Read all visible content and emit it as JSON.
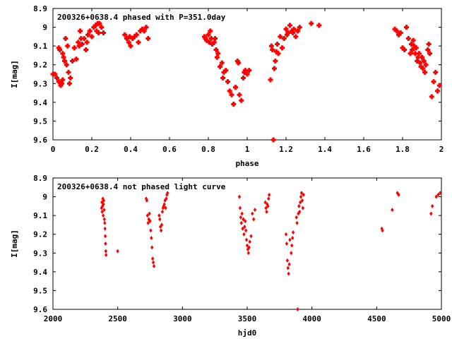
{
  "chart_data": [
    {
      "type": "scatter",
      "title": "200326+0638.4 phased with P=351.0day",
      "xlabel": "phase",
      "ylabel": "I[mag]",
      "xlim": [
        0,
        2
      ],
      "ylim": [
        9.6,
        8.9
      ],
      "y_inverted": true,
      "grid": false,
      "marker": "star",
      "color": "#ff0000",
      "x_ticks": [
        "0",
        "0.2",
        "0.4",
        "0.6",
        "0.8",
        "1",
        "1.2",
        "1.4",
        "1.6",
        "1.8",
        "2"
      ],
      "y_ticks": [
        "8.9",
        "9",
        "9.1",
        "9.2",
        "9.3",
        "9.4",
        "9.5",
        "9.6"
      ],
      "points": [
        [
          0.0,
          9.25
        ],
        [
          0.01,
          9.25
        ],
        [
          0.02,
          9.27
        ],
        [
          0.03,
          9.29
        ],
        [
          0.03,
          9.11
        ],
        [
          0.035,
          9.12
        ],
        [
          0.04,
          9.31
        ],
        [
          0.045,
          9.3
        ],
        [
          0.05,
          9.28
        ],
        [
          0.05,
          9.14
        ],
        [
          0.055,
          9.16
        ],
        [
          0.06,
          9.18
        ],
        [
          0.065,
          9.06
        ],
        [
          0.07,
          9.2
        ],
        [
          0.075,
          9.1
        ],
        [
          0.08,
          9.24
        ],
        [
          0.085,
          9.3
        ],
        [
          0.09,
          9.27
        ],
        [
          0.1,
          9.18
        ],
        [
          0.11,
          9.11
        ],
        [
          0.12,
          9.17
        ],
        [
          0.13,
          9.08
        ],
        [
          0.135,
          9.1
        ],
        [
          0.14,
          9.02
        ],
        [
          0.145,
          9.06
        ],
        [
          0.15,
          9.09
        ],
        [
          0.16,
          9.06
        ],
        [
          0.17,
          9.12
        ],
        [
          0.175,
          9.08
        ],
        [
          0.18,
          9.04
        ],
        [
          0.19,
          9.02
        ],
        [
          0.2,
          9.05
        ],
        [
          0.21,
          9.0
        ],
        [
          0.22,
          8.99
        ],
        [
          0.225,
          9.02
        ],
        [
          0.23,
          8.98
        ],
        [
          0.235,
          9.03
        ],
        [
          0.24,
          8.98
        ],
        [
          0.25,
          9.0
        ],
        [
          0.26,
          9.03
        ],
        [
          0.37,
          9.04
        ],
        [
          0.38,
          9.06
        ],
        [
          0.39,
          9.08
        ],
        [
          0.395,
          9.05
        ],
        [
          0.4,
          9.1
        ],
        [
          0.41,
          9.06
        ],
        [
          0.42,
          9.05
        ],
        [
          0.43,
          9.04
        ],
        [
          0.44,
          9.08
        ],
        [
          0.45,
          9.02
        ],
        [
          0.46,
          9.01
        ],
        [
          0.47,
          9.02
        ],
        [
          0.48,
          9.0
        ],
        [
          0.49,
          9.06
        ],
        [
          0.78,
          9.05
        ],
        [
          0.785,
          9.06
        ],
        [
          0.79,
          9.07
        ],
        [
          0.8,
          9.04
        ],
        [
          0.805,
          9.08
        ],
        [
          0.81,
          9.02
        ],
        [
          0.815,
          9.06
        ],
        [
          0.82,
          9.09
        ],
        [
          0.83,
          9.08
        ],
        [
          0.835,
          9.06
        ],
        [
          0.84,
          9.12
        ],
        [
          0.845,
          9.16
        ],
        [
          0.85,
          9.14
        ],
        [
          0.86,
          9.21
        ],
        [
          0.87,
          9.19
        ],
        [
          0.875,
          9.27
        ],
        [
          0.88,
          9.24
        ],
        [
          0.89,
          9.23
        ],
        [
          0.9,
          9.29
        ],
        [
          0.91,
          9.34
        ],
        [
          0.92,
          9.36
        ],
        [
          0.93,
          9.41
        ],
        [
          0.94,
          9.32
        ],
        [
          0.95,
          9.18
        ],
        [
          0.955,
          9.19
        ],
        [
          0.96,
          9.36
        ],
        [
          0.97,
          9.39
        ],
        [
          0.98,
          9.27
        ],
        [
          0.985,
          9.24
        ],
        [
          0.99,
          9.23
        ],
        [
          1.0,
          9.25
        ],
        [
          1.01,
          9.23
        ],
        [
          1.12,
          9.28
        ],
        [
          1.125,
          9.1
        ],
        [
          1.13,
          9.12
        ],
        [
          1.135,
          9.6
        ],
        [
          1.14,
          9.22
        ],
        [
          1.145,
          9.18
        ],
        [
          1.15,
          9.13
        ],
        [
          1.155,
          9.09
        ],
        [
          1.16,
          9.14
        ],
        [
          1.17,
          9.05
        ],
        [
          1.18,
          9.11
        ],
        [
          1.19,
          9.06
        ],
        [
          1.2,
          9.01
        ],
        [
          1.205,
          9.04
        ],
        [
          1.21,
          9.03
        ],
        [
          1.22,
          8.99
        ],
        [
          1.23,
          9.02
        ],
        [
          1.235,
          9.03
        ],
        [
          1.24,
          9.01
        ],
        [
          1.25,
          9.05
        ],
        [
          1.26,
          9.02
        ],
        [
          1.27,
          9.0
        ],
        [
          1.33,
          8.98
        ],
        [
          1.37,
          8.99
        ],
        [
          1.76,
          9.01
        ],
        [
          1.77,
          9.02
        ],
        [
          1.78,
          9.04
        ],
        [
          1.79,
          9.03
        ],
        [
          1.8,
          9.11
        ],
        [
          1.81,
          9.12
        ],
        [
          1.82,
          9.0
        ],
        [
          1.83,
          9.06
        ],
        [
          1.84,
          9.14
        ],
        [
          1.845,
          9.09
        ],
        [
          1.85,
          9.12
        ],
        [
          1.855,
          9.07
        ],
        [
          1.86,
          9.1
        ],
        [
          1.865,
          9.14
        ],
        [
          1.87,
          9.11
        ],
        [
          1.875,
          9.18
        ],
        [
          1.88,
          9.16
        ],
        [
          1.885,
          9.14
        ],
        [
          1.89,
          9.19
        ],
        [
          1.895,
          9.21
        ],
        [
          1.9,
          9.16
        ],
        [
          1.905,
          9.22
        ],
        [
          1.91,
          9.18
        ],
        [
          1.915,
          9.24
        ],
        [
          1.92,
          9.2
        ],
        [
          1.93,
          9.12
        ],
        [
          1.935,
          9.09
        ],
        [
          1.94,
          9.14
        ],
        [
          1.95,
          9.37
        ],
        [
          1.96,
          9.29
        ],
        [
          1.97,
          9.24
        ],
        [
          1.98,
          9.34
        ],
        [
          1.99,
          9.31
        ]
      ]
    },
    {
      "type": "scatter",
      "title": "200326+0638.4 not phased light curve",
      "xlabel": "hjd0",
      "ylabel": "I[mag]",
      "xlim": [
        2000,
        5000
      ],
      "ylim": [
        9.6,
        8.9
      ],
      "y_inverted": true,
      "grid": false,
      "marker": "diamond",
      "color": "#ff0000",
      "x_ticks": [
        "2000",
        "2500",
        "3000",
        "3500",
        "4000",
        "4500",
        "5000"
      ],
      "y_ticks": [
        "8.9",
        "9",
        "9.1",
        "9.2",
        "9.3",
        "9.4",
        "9.5",
        "9.6"
      ],
      "points": [
        [
          2375,
          9.06
        ],
        [
          2378,
          9.03
        ],
        [
          2380,
          9.08
        ],
        [
          2383,
          9.05
        ],
        [
          2385,
          9.01
        ],
        [
          2388,
          9.1
        ],
        [
          2390,
          9.04
        ],
        [
          2392,
          9.02
        ],
        [
          2395,
          9.07
        ],
        [
          2397,
          9.12
        ],
        [
          2400,
          9.14
        ],
        [
          2402,
          9.17
        ],
        [
          2404,
          9.21
        ],
        [
          2406,
          9.25
        ],
        [
          2408,
          9.29
        ],
        [
          2410,
          9.31
        ],
        [
          2500,
          9.29
        ],
        [
          2720,
          9.01
        ],
        [
          2725,
          9.02
        ],
        [
          2730,
          9.1
        ],
        [
          2735,
          9.14
        ],
        [
          2740,
          9.12
        ],
        [
          2745,
          9.09
        ],
        [
          2750,
          9.13
        ],
        [
          2755,
          9.18
        ],
        [
          2760,
          9.22
        ],
        [
          2765,
          9.27
        ],
        [
          2770,
          9.33
        ],
        [
          2775,
          9.35
        ],
        [
          2780,
          9.37
        ],
        [
          2820,
          9.1
        ],
        [
          2825,
          9.12
        ],
        [
          2830,
          9.16
        ],
        [
          2835,
          9.18
        ],
        [
          2840,
          9.15
        ],
        [
          2845,
          9.08
        ],
        [
          2850,
          9.06
        ],
        [
          2855,
          9.05
        ],
        [
          2860,
          9.04
        ],
        [
          2865,
          9.02
        ],
        [
          2870,
          9.06
        ],
        [
          2875,
          9.01
        ],
        [
          2880,
          8.99
        ],
        [
          2885,
          8.98
        ],
        [
          3440,
          9.0
        ],
        [
          3445,
          9.06
        ],
        [
          3450,
          9.11
        ],
        [
          3455,
          9.14
        ],
        [
          3460,
          9.09
        ],
        [
          3465,
          9.17
        ],
        [
          3470,
          9.12
        ],
        [
          3475,
          9.2
        ],
        [
          3480,
          9.16
        ],
        [
          3485,
          9.13
        ],
        [
          3490,
          9.18
        ],
        [
          3495,
          9.23
        ],
        [
          3500,
          9.26
        ],
        [
          3505,
          9.28
        ],
        [
          3510,
          9.3
        ],
        [
          3515,
          9.27
        ],
        [
          3520,
          9.24
        ],
        [
          3530,
          9.21
        ],
        [
          3540,
          9.09
        ],
        [
          3550,
          9.12
        ],
        [
          3560,
          9.07
        ],
        [
          3640,
          9.03
        ],
        [
          3645,
          9.06
        ],
        [
          3650,
          9.08
        ],
        [
          3655,
          9.04
        ],
        [
          3660,
          9.05
        ],
        [
          3665,
          9.01
        ],
        [
          3670,
          8.99
        ],
        [
          3800,
          9.2
        ],
        [
          3805,
          9.25
        ],
        [
          3810,
          9.34
        ],
        [
          3815,
          9.38
        ],
        [
          3820,
          9.41
        ],
        [
          3825,
          9.36
        ],
        [
          3830,
          9.23
        ],
        [
          3840,
          9.3
        ],
        [
          3845,
          9.26
        ],
        [
          3850,
          9.22
        ],
        [
          3855,
          9.19
        ],
        [
          3880,
          9.11
        ],
        [
          3885,
          9.14
        ],
        [
          3890,
          9.6
        ],
        [
          3895,
          9.09
        ],
        [
          3900,
          9.05
        ],
        [
          3905,
          9.08
        ],
        [
          3910,
          9.03
        ],
        [
          3915,
          9.0
        ],
        [
          3920,
          8.98
        ],
        [
          3925,
          9.02
        ],
        [
          3930,
          9.06
        ],
        [
          3935,
          8.99
        ],
        [
          4540,
          9.17
        ],
        [
          4545,
          9.18
        ],
        [
          4620,
          9.07
        ],
        [
          4660,
          8.98
        ],
        [
          4670,
          8.99
        ],
        [
          4920,
          9.09
        ],
        [
          4930,
          9.05
        ],
        [
          4960,
          9.0
        ],
        [
          4975,
          8.99
        ],
        [
          4990,
          8.98
        ]
      ]
    }
  ]
}
